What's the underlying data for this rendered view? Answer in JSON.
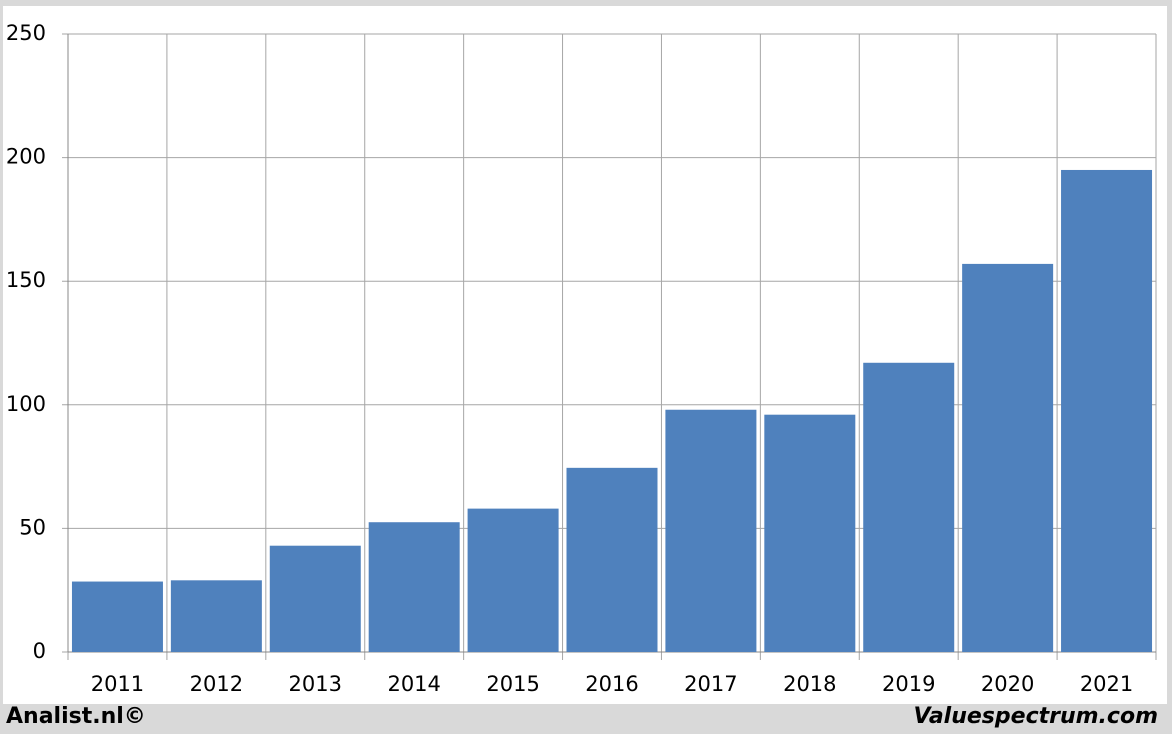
{
  "chart_data": {
    "type": "bar",
    "categories": [
      "2011",
      "2012",
      "2013",
      "2014",
      "2015",
      "2016",
      "2017",
      "2018",
      "2019",
      "2020",
      "2021"
    ],
    "values": [
      28.5,
      29,
      43,
      52.5,
      58,
      74.5,
      98,
      96,
      117,
      157,
      195
    ],
    "color": "#4f81bd",
    "ylim": [
      0,
      250
    ],
    "yticks": [
      0,
      50,
      100,
      150,
      200,
      250
    ],
    "grid": true,
    "footer_left": "Analist.nl©",
    "footer_right": "Valuespectrum.com"
  }
}
